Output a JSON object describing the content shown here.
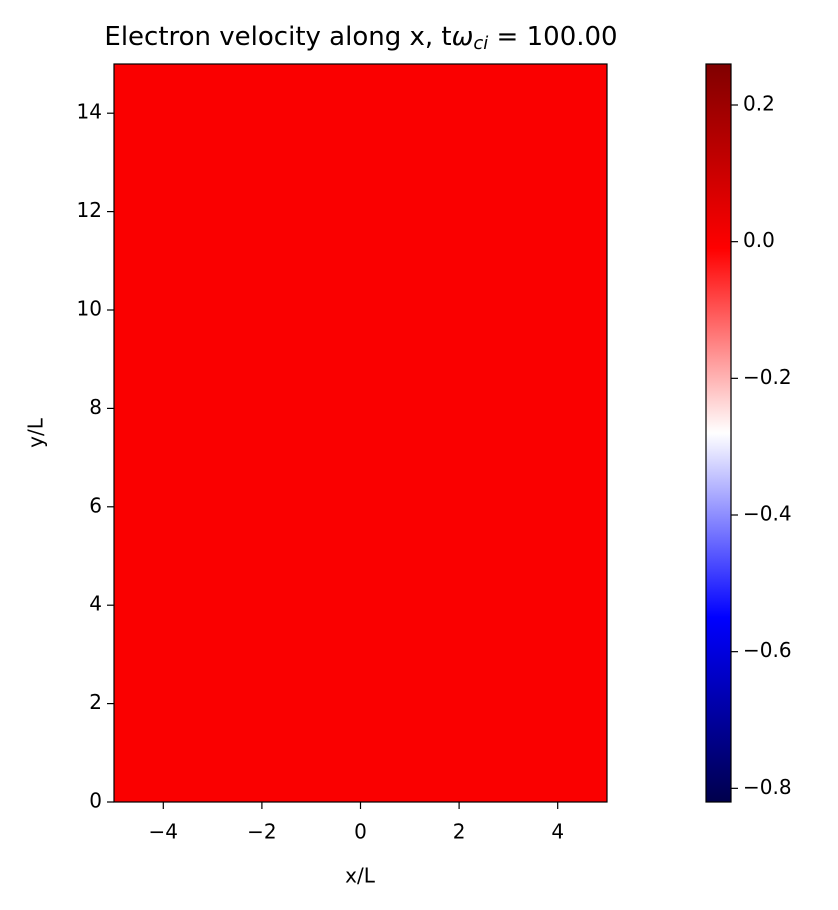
{
  "chart_data": {
    "type": "heatmap",
    "title": [
      "Electron velocity along x, t",
      "ω",
      "ci",
      " = 100.00"
    ],
    "x_label": "x/L",
    "y_label": "y/L",
    "xlim": [
      -5,
      5
    ],
    "ylim": [
      0,
      15
    ],
    "xticks": [
      {
        "value": -4,
        "label": "−4"
      },
      {
        "value": -2,
        "label": "−2"
      },
      0,
      2,
      4
    ],
    "yticks": [
      0,
      2,
      4,
      6,
      8,
      10,
      12,
      14
    ],
    "z": [
      [
        0.0,
        0.0,
        0.0,
        0.0,
        0.0
      ],
      [
        0.0,
        0.0,
        0.0,
        0.0,
        0.0
      ],
      [
        0.0,
        0.0,
        0.0,
        0.0,
        0.0
      ],
      [
        0.0,
        0.0,
        0.0,
        0.0,
        0.0
      ],
      [
        0.0,
        0.0,
        0.0,
        0.0,
        0.0
      ],
      [
        0.0,
        0.0,
        0.0,
        0.0,
        0.0
      ]
    ],
    "colormap": [
      "#00004c",
      "#0000ff",
      "#ffffff",
      "#ff0000",
      "#800000"
    ],
    "clim": [
      -0.82,
      0.26
    ],
    "cticks": [
      {
        "value": -0.8,
        "label": "−0.8"
      },
      {
        "value": -0.6,
        "label": "−0.6"
      },
      {
        "value": -0.4,
        "label": "−0.4"
      },
      {
        "value": -0.2,
        "label": "−0.2"
      },
      {
        "value": 0.0,
        "label": "0.0"
      },
      0.2
    ]
  }
}
